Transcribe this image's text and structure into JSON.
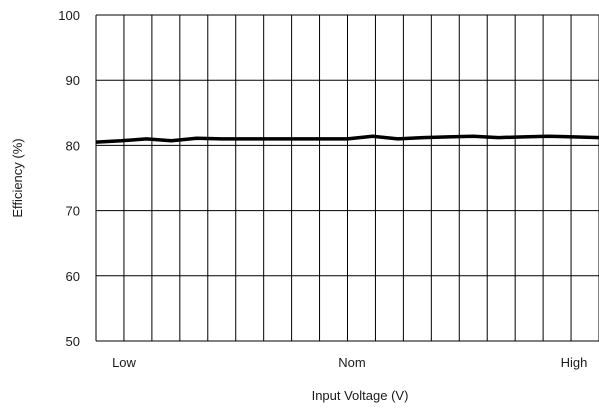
{
  "chart_data": {
    "type": "line",
    "title": "",
    "xlabel": "Input Voltage (V)",
    "ylabel": "Efficiency (%)",
    "ylim": [
      50,
      100
    ],
    "yticks": [
      100,
      90,
      80,
      70,
      60,
      50
    ],
    "x_category_labels": [
      "Low",
      "Nom",
      "High"
    ],
    "grid": true,
    "series": [
      {
        "x": [
          0,
          1,
          2,
          3,
          4,
          5,
          6,
          7,
          8,
          9,
          10,
          11,
          12,
          13,
          14,
          15,
          16,
          17,
          18,
          19,
          20
        ],
        "values": [
          80.5,
          80.7,
          81.0,
          80.7,
          81.1,
          81.0,
          81.0,
          81.0,
          81.0,
          81.0,
          81.0,
          81.4,
          81.0,
          81.2,
          81.3,
          81.4,
          81.2,
          81.3,
          81.4,
          81.3,
          81.2
        ]
      }
    ],
    "colors": {
      "line": "#000000",
      "grid": "#000000"
    }
  }
}
